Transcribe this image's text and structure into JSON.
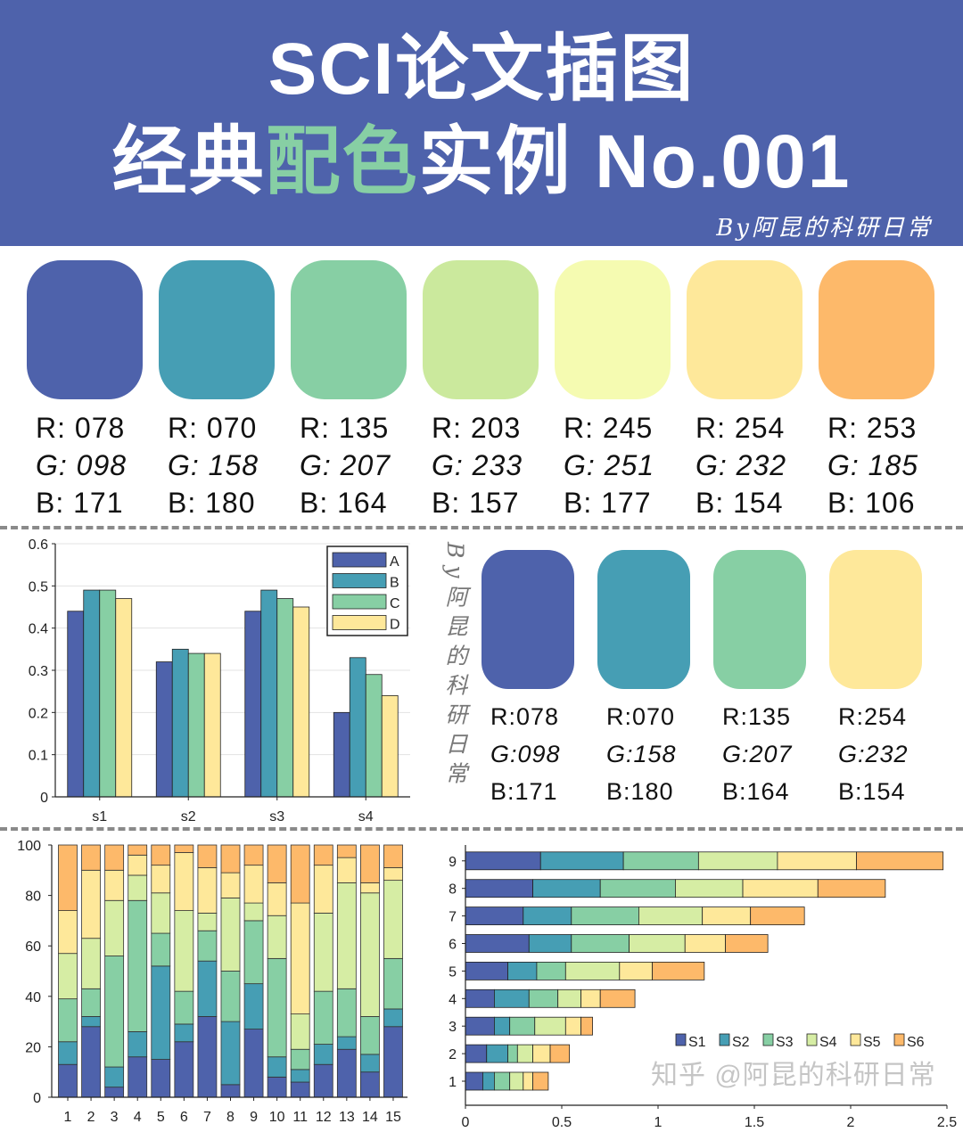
{
  "header": {
    "title_line1": "SCI论文插图",
    "title_line2_a": "经典",
    "title_line2_b": "配色",
    "title_line2_c": "实例 No.001",
    "byline": "By阿昆的科研日常",
    "background": "#4E62AB",
    "highlight": "#87CFA4"
  },
  "palette7": [
    {
      "color": "#4E62AB",
      "r": "R: 078",
      "g": "G: 098",
      "b": "B: 171"
    },
    {
      "color": "#469EB4",
      "r": "R: 070",
      "g": "G: 158",
      "b": "B: 180"
    },
    {
      "color": "#87CFA4",
      "r": "R: 135",
      "g": "G: 207",
      "b": "B: 164"
    },
    {
      "color": "#CBE99D",
      "r": "R: 203",
      "g": "G: 233",
      "b": "B: 157"
    },
    {
      "color": "#F5FBB1",
      "r": "R: 245",
      "g": "G: 251",
      "b": "B: 177"
    },
    {
      "color": "#FEE89A",
      "r": "R: 254",
      "g": "G: 232",
      "b": "B: 154"
    },
    {
      "color": "#FDB96A",
      "r": "R: 253",
      "g": "G: 185",
      "b": "B: 106"
    }
  ],
  "palette4": [
    {
      "color": "#4E62AB",
      "r": "R:078",
      "g": "G:098",
      "b": "B:171"
    },
    {
      "color": "#469EB4",
      "r": "R:070",
      "g": "G:158",
      "b": "B:180"
    },
    {
      "color": "#87CFA4",
      "r": "R:135",
      "g": "G:207",
      "b": "B:164"
    },
    {
      "color": "#FEE89A",
      "r": "R:254",
      "g": "G:232",
      "b": "B:154"
    }
  ],
  "vertical_watermark": "By阿昆的科研日常",
  "corner_watermark": "知乎 @阿昆的科研日常",
  "chart_data": [
    {
      "type": "bar",
      "categories": [
        "s1",
        "s2",
        "s3",
        "s4"
      ],
      "series": [
        {
          "name": "A",
          "color": "#4E62AB",
          "values": [
            0.44,
            0.32,
            0.44,
            0.2
          ]
        },
        {
          "name": "B",
          "color": "#469EB4",
          "values": [
            0.49,
            0.35,
            0.49,
            0.33
          ]
        },
        {
          "name": "C",
          "color": "#87CFA4",
          "values": [
            0.49,
            0.34,
            0.47,
            0.29
          ]
        },
        {
          "name": "D",
          "color": "#FEE89A",
          "values": [
            0.47,
            0.34,
            0.45,
            0.24
          ]
        }
      ],
      "ylim": [
        0,
        0.6
      ],
      "yticks": [
        "0",
        "0.1",
        "0.2",
        "0.3",
        "0.4",
        "0.5",
        "0.6"
      ],
      "grid": "horizontal",
      "legend": "top-right"
    },
    {
      "type": "bar",
      "stacked": true,
      "categories": [
        "1",
        "2",
        "3",
        "4",
        "5",
        "6",
        "7",
        "8",
        "9",
        "10",
        "11",
        "12",
        "13",
        "14",
        "15"
      ],
      "colors": [
        "#4E62AB",
        "#469EB4",
        "#87CFA4",
        "#D6EDA4",
        "#FEE89A",
        "#FDB96A"
      ],
      "stacks": [
        [
          13,
          9,
          17,
          18,
          17,
          26
        ],
        [
          28,
          4,
          11,
          20,
          27,
          10
        ],
        [
          4,
          8,
          44,
          22,
          12,
          10
        ],
        [
          16,
          10,
          52,
          10,
          8,
          4
        ],
        [
          15,
          37,
          13,
          16,
          11,
          8
        ],
        [
          22,
          7,
          13,
          32,
          23,
          3
        ],
        [
          32,
          22,
          12,
          7,
          18,
          9
        ],
        [
          5,
          25,
          20,
          29,
          10,
          11
        ],
        [
          27,
          18,
          25,
          7,
          15,
          8
        ],
        [
          8,
          8,
          39,
          17,
          13,
          15
        ],
        [
          6,
          5,
          8,
          14,
          44,
          23
        ],
        [
          13,
          8,
          21,
          31,
          19,
          8
        ],
        [
          19,
          5,
          19,
          42,
          10,
          5
        ],
        [
          10,
          7,
          15,
          49,
          4,
          15
        ],
        [
          28,
          7,
          20,
          31,
          5,
          9
        ]
      ],
      "ylim": [
        0,
        100
      ],
      "yticks": [
        "0",
        "20",
        "40",
        "60",
        "80",
        "100"
      ]
    },
    {
      "type": "bar",
      "orientation": "horizontal",
      "stacked": true,
      "categories": [
        "1",
        "2",
        "3",
        "4",
        "5",
        "6",
        "7",
        "8",
        "9"
      ],
      "series_names": [
        "S1",
        "S2",
        "S3",
        "S4",
        "S5",
        "S6"
      ],
      "colors": [
        "#4E62AB",
        "#469EB4",
        "#87CFA4",
        "#D6EDA4",
        "#FEE89A",
        "#FDB96A"
      ],
      "stacks": [
        [
          0.09,
          0.06,
          0.08,
          0.07,
          0.05,
          0.08
        ],
        [
          0.11,
          0.11,
          0.05,
          0.08,
          0.09,
          0.1
        ],
        [
          0.15,
          0.08,
          0.13,
          0.16,
          0.08,
          0.06
        ],
        [
          0.15,
          0.18,
          0.15,
          0.12,
          0.1,
          0.18
        ],
        [
          0.22,
          0.15,
          0.15,
          0.28,
          0.17,
          0.27
        ],
        [
          0.33,
          0.22,
          0.3,
          0.29,
          0.21,
          0.22
        ],
        [
          0.3,
          0.25,
          0.35,
          0.33,
          0.25,
          0.28
        ],
        [
          0.35,
          0.35,
          0.39,
          0.35,
          0.39,
          0.35
        ],
        [
          0.39,
          0.43,
          0.39,
          0.41,
          0.41,
          0.45
        ]
      ],
      "xlim": [
        0,
        2.5
      ],
      "xticks": [
        "0",
        "0.5",
        "1",
        "1.5",
        "2",
        "2.5"
      ],
      "legend": "bottom-right"
    }
  ]
}
